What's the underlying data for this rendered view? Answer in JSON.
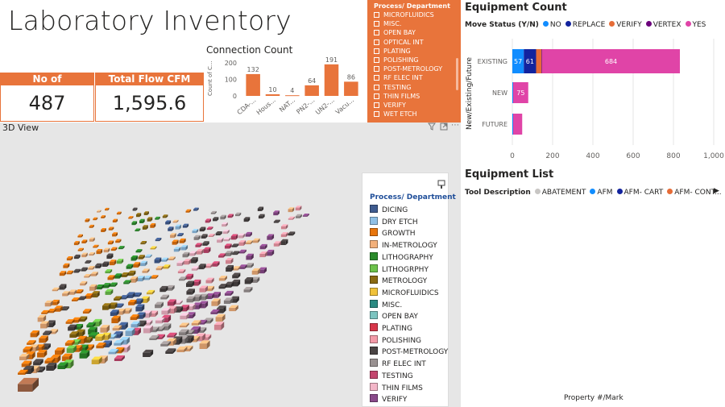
{
  "page": {
    "title": "Laboratory Inventory"
  },
  "cards": {
    "connections": {
      "label": "No of Connnections",
      "value": "487"
    },
    "flow": {
      "label": "Total Flow CFM",
      "value": "1,595.6"
    }
  },
  "connection_chart": {
    "chart_data": {
      "type": "bar",
      "title": "Connection Count",
      "ylabel": "Count of C...",
      "categories": [
        "CDA-...",
        "Hous...",
        "NAT...",
        "PN2-...",
        "UN2-...",
        "Vacu..."
      ],
      "values": [
        132,
        10,
        4,
        64,
        191,
        86
      ],
      "ylim": [
        0,
        200
      ],
      "yticks": [
        "0",
        "100",
        "200"
      ]
    }
  },
  "process_slicer": {
    "header": "Process/ Department",
    "items": [
      "MICROFLUIDICS",
      "MISC.",
      "OPEN BAY",
      "OPTICAL INT",
      "PLATING",
      "POLISHING",
      "POST-METROLOGY",
      "RF ELEC INT",
      "TESTING",
      "THIN FILMS",
      "VERIFY",
      "WET ETCH"
    ]
  },
  "equipment_count": {
    "title": "Equipment Count",
    "legend_label": "Move Status (Y/N)",
    "legend": [
      {
        "name": "NO",
        "color": "#118dff"
      },
      {
        "name": "REPLACE",
        "color": "#12239e"
      },
      {
        "name": "VERIFY",
        "color": "#e66c37"
      },
      {
        "name": "VERTEX",
        "color": "#6b007b"
      },
      {
        "name": "YES",
        "color": "#e044a7"
      }
    ],
    "chart_data": {
      "type": "bar",
      "orientation": "horizontal",
      "stacked": true,
      "ylabel": "New/Existing/Future",
      "categories": [
        "EXISTING",
        "NEW",
        "FUTURE"
      ],
      "series": [
        {
          "name": "NO",
          "values": [
            57,
            4,
            4
          ]
        },
        {
          "name": "REPLACE",
          "values": [
            61,
            0,
            0
          ]
        },
        {
          "name": "VERIFY",
          "values": [
            27,
            0,
            0
          ]
        },
        {
          "name": "VERTEX",
          "values": [
            3,
            0,
            0
          ]
        },
        {
          "name": "YES",
          "values": [
            684,
            75,
            45
          ]
        }
      ],
      "data_labels": [
        [
          "57",
          "61",
          "",
          "",
          "684"
        ],
        [
          "",
          "",
          "",
          "",
          "75"
        ],
        [
          "",
          "",
          "",
          "",
          ""
        ]
      ],
      "xlim": [
        0,
        1000
      ],
      "xticks": [
        "0",
        "200",
        "400",
        "600",
        "800",
        "1,000"
      ]
    }
  },
  "equipment_list": {
    "title": "Equipment List",
    "legend_label": "Tool Description",
    "legend": [
      {
        "name": "ABATEMENT",
        "color": "#c8c6c4"
      },
      {
        "name": "AFM",
        "color": "#118dff"
      },
      {
        "name": "AFM- CART",
        "color": "#12239e"
      },
      {
        "name": "AFM- CONT...",
        "color": "#e66c37"
      }
    ],
    "xlabel": "Property #/Mark"
  },
  "view3d": {
    "label": "3D View",
    "legend_title": "Process/ Department",
    "legend": [
      {
        "name": "DICING",
        "color": "#3f5b8f"
      },
      {
        "name": "DRY ETCH",
        "color": "#8fc0e6"
      },
      {
        "name": "GROWTH",
        "color": "#e8750c"
      },
      {
        "name": "IN-METROLOGY",
        "color": "#f3b07a"
      },
      {
        "name": "LITHOGRAPHY",
        "color": "#2a8a2a"
      },
      {
        "name": "LITHOGRPHY",
        "color": "#6cc24a"
      },
      {
        "name": "METROLOGY",
        "color": "#8a6a12"
      },
      {
        "name": "MICROFLUIDICS",
        "color": "#f0c23a"
      },
      {
        "name": "MISC.",
        "color": "#2a8a82"
      },
      {
        "name": "OPEN BAY",
        "color": "#7cc4c0"
      },
      {
        "name": "PLATING",
        "color": "#d8364a"
      },
      {
        "name": "POLISHING",
        "color": "#f39aa8"
      },
      {
        "name": "POST-METROLOGY",
        "color": "#4a4444"
      },
      {
        "name": "RF ELEC INT",
        "color": "#9a9292"
      },
      {
        "name": "TESTING",
        "color": "#c4466e"
      },
      {
        "name": "THIN FILMS",
        "color": "#f3b6c8"
      },
      {
        "name": "VERIFY",
        "color": "#8a4a8a"
      }
    ]
  }
}
